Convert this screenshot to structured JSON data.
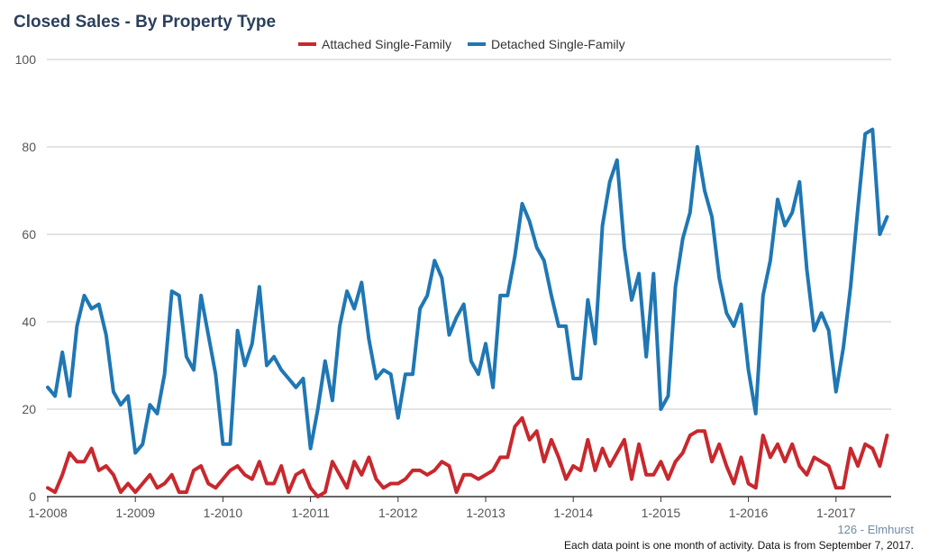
{
  "title": "Closed Sales - By Property Type",
  "footer": {
    "region": "126 - Elmhurst",
    "note": "Each data point is one month of activity. Data is from September 7, 2017."
  },
  "chart_data": {
    "type": "line",
    "x_start": "2008-01",
    "x_tick_labels": [
      "1-2008",
      "1-2009",
      "1-2010",
      "1-2011",
      "1-2012",
      "1-2013",
      "1-2014",
      "1-2015",
      "1-2016",
      "1-2017"
    ],
    "ylim": [
      0,
      100
    ],
    "y_ticks": [
      0,
      20,
      40,
      60,
      80,
      100
    ],
    "grid": true,
    "legend": "top-center",
    "series": [
      {
        "name": "Attached Single-Family",
        "color": "#c8282d",
        "values": [
          2,
          1,
          5,
          10,
          8,
          8,
          11,
          6,
          7,
          5,
          1,
          3,
          1,
          3,
          5,
          2,
          3,
          5,
          1,
          1,
          6,
          7,
          3,
          2,
          4,
          6,
          7,
          5,
          4,
          8,
          3,
          3,
          7,
          1,
          5,
          6,
          2,
          0,
          1,
          8,
          5,
          2,
          8,
          5,
          9,
          4,
          2,
          3,
          3,
          4,
          6,
          6,
          5,
          6,
          8,
          7,
          1,
          5,
          5,
          4,
          5,
          6,
          9,
          9,
          16,
          18,
          13,
          15,
          8,
          13,
          9,
          4,
          7,
          6,
          13,
          6,
          11,
          7,
          10,
          13,
          4,
          12,
          5,
          5,
          8,
          4,
          8,
          10,
          14,
          15,
          15,
          8,
          12,
          7,
          3,
          9,
          3,
          2,
          14,
          9,
          12,
          8,
          12,
          7,
          5,
          9,
          8,
          7,
          2,
          2,
          11,
          7,
          12,
          11,
          7,
          14
        ]
      },
      {
        "name": "Detached Single-Family",
        "color": "#1f77b4",
        "values": [
          25,
          23,
          33,
          23,
          39,
          46,
          43,
          44,
          37,
          24,
          21,
          23,
          10,
          12,
          21,
          19,
          28,
          47,
          46,
          32,
          29,
          46,
          37,
          28,
          12,
          12,
          38,
          30,
          35,
          48,
          30,
          32,
          29,
          27,
          25,
          27,
          11,
          20,
          31,
          22,
          39,
          47,
          43,
          49,
          36,
          27,
          29,
          28,
          18,
          28,
          28,
          43,
          46,
          54,
          50,
          37,
          41,
          44,
          31,
          28,
          35,
          25,
          46,
          46,
          55,
          67,
          63,
          57,
          54,
          46,
          39,
          39,
          27,
          27,
          45,
          35,
          62,
          72,
          77,
          57,
          45,
          51,
          32,
          51,
          20,
          23,
          48,
          59,
          65,
          80,
          70,
          64,
          50,
          42,
          39,
          44,
          29,
          19,
          46,
          54,
          68,
          62,
          65,
          72,
          52,
          38,
          42,
          38,
          24,
          34,
          48,
          66,
          83,
          84,
          60,
          64
        ]
      }
    ]
  }
}
